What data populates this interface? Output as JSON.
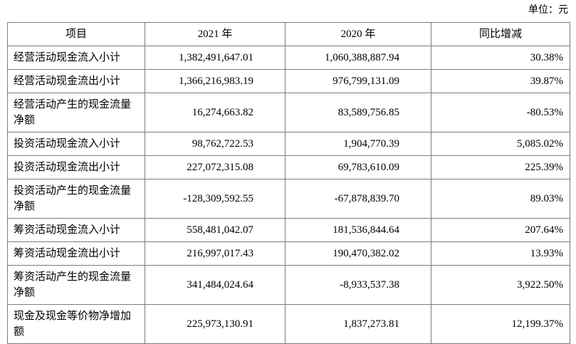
{
  "page": {
    "unit_label": "单位：元"
  },
  "table": {
    "headers": {
      "item": "项目",
      "y2021": "2021 年",
      "y2020": "2020 年",
      "change": "同比增减"
    },
    "rows": [
      {
        "item": "经营活动现金流入小计",
        "y2021": "1,382,491,647.01",
        "y2020": "1,060,388,887.94",
        "change": "30.38%"
      },
      {
        "item": "经营活动现金流出小计",
        "y2021": "1,366,216,983.19",
        "y2020": "976,799,131.09",
        "change": "39.87%"
      },
      {
        "item": "经营活动产生的现金流量净额",
        "y2021": "16,274,663.82",
        "y2020": "83,589,756.85",
        "change": "-80.53%"
      },
      {
        "item": "投资活动现金流入小计",
        "y2021": "98,762,722.53",
        "y2020": "1,904,770.39",
        "change": "5,085.02%"
      },
      {
        "item": "投资活动现金流出小计",
        "y2021": "227,072,315.08",
        "y2020": "69,783,610.09",
        "change": "225.39%"
      },
      {
        "item": "投资活动产生的现金流量净额",
        "y2021": "-128,309,592.55",
        "y2020": "-67,878,839.70",
        "change": "89.03%"
      },
      {
        "item": "筹资活动现金流入小计",
        "y2021": "558,481,042.07",
        "y2020": "181,536,844.64",
        "change": "207.64%"
      },
      {
        "item": "筹资活动现金流出小计",
        "y2021": "216,997,017.43",
        "y2020": "190,470,382.02",
        "change": "13.93%"
      },
      {
        "item": "筹资活动产生的现金流量净额",
        "y2021": "341,484,024.64",
        "y2020": "-8,933,537.38",
        "change": "3,922.50%"
      },
      {
        "item": "现金及现金等价物净增加额",
        "y2021": "225,973,130.91",
        "y2020": "1,837,273.81",
        "change": "12,199.37%"
      }
    ]
  }
}
